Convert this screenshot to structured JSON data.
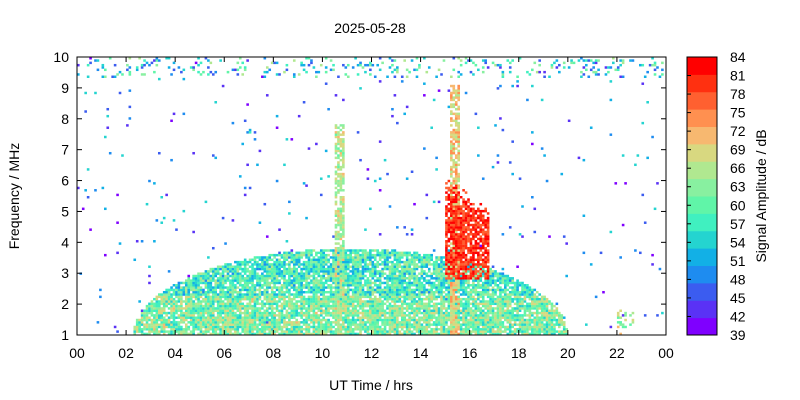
{
  "chart_data": {
    "type": "heatmap",
    "title": "2025-05-28",
    "xlabel": "UT Time / hrs",
    "ylabel": "Frequency / MHz",
    "colorbar_label": "Signal Amplitude / dB",
    "x_ticks": [
      "00",
      "02",
      "04",
      "06",
      "08",
      "10",
      "12",
      "14",
      "16",
      "18",
      "20",
      "22",
      "00"
    ],
    "y_ticks": [
      "1",
      "2",
      "3",
      "4",
      "5",
      "6",
      "7",
      "8",
      "9",
      "10"
    ],
    "xlim": [
      0,
      24
    ],
    "ylim": [
      1,
      10
    ],
    "color_ticks": [
      "39",
      "42",
      "45",
      "48",
      "51",
      "54",
      "57",
      "60",
      "63",
      "66",
      "69",
      "72",
      "75",
      "78",
      "81",
      "84"
    ],
    "color_range": [
      39,
      84
    ],
    "colormap": [
      "#7f00ff",
      "#5a32f5",
      "#3b5cf0",
      "#1e8cf0",
      "#12b0e6",
      "#24d4d0",
      "#40f0c0",
      "#60f5a8",
      "#88f0a0",
      "#b0e890",
      "#d8d880",
      "#f7b870",
      "#ff9050",
      "#ff6030",
      "#ff3010",
      "#ff0000"
    ],
    "features": [
      {
        "name": "ionospheric daytime band",
        "x_start": 2.3,
        "x_end": 20.0,
        "y_bottom": 1.0,
        "y_peak": 3.8,
        "level_db": 58
      },
      {
        "name": "noon burst",
        "x_center": 10.7,
        "y_range": [
          1.0,
          7.8
        ],
        "level_db": 66
      },
      {
        "name": "afternoon burst",
        "x_center": 15.4,
        "y_range": [
          1.0,
          9.1
        ],
        "level_db": 70
      },
      {
        "name": "afternoon strong emission",
        "x_range": [
          15.0,
          16.8
        ],
        "y_range": [
          2.8,
          6.3
        ],
        "level_db": 80
      },
      {
        "name": "top band interference",
        "x_range": [
          0.0,
          24.0
        ],
        "y_range": [
          9.3,
          10.0
        ],
        "level_db": 55
      },
      {
        "name": "late evening patch",
        "x_center": 22.3,
        "y_range": [
          1.0,
          1.8
        ],
        "level_db": 65
      }
    ]
  }
}
